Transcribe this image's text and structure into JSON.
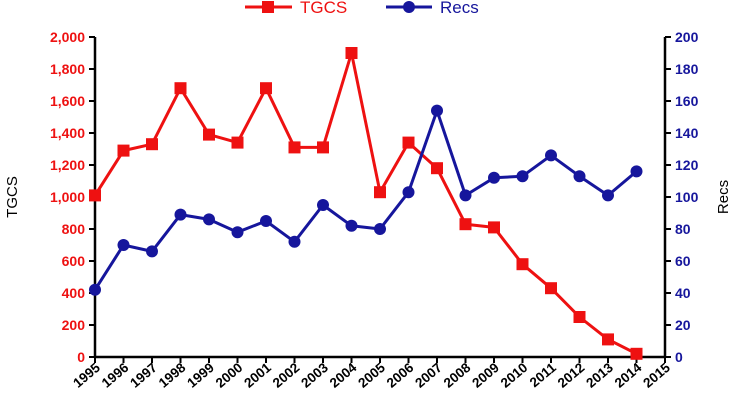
{
  "chart_data": {
    "type": "line",
    "title": "",
    "xlabel": "",
    "ylabel_left": "TGCS",
    "ylabel_right": "Recs",
    "x_categories": [
      "1995",
      "1996",
      "1997",
      "1998",
      "1999",
      "2000",
      "2001",
      "2002",
      "2003",
      "2004",
      "2005",
      "2006",
      "2007",
      "2008",
      "2009",
      "2010",
      "2011",
      "2012",
      "2013",
      "2014",
      "2015"
    ],
    "y_left": {
      "lim": [
        0,
        2000
      ],
      "ticks": [
        0,
        200,
        400,
        600,
        800,
        1000,
        1200,
        1400,
        1600,
        1800,
        2000
      ],
      "tick_labels": [
        "0",
        "200",
        "400",
        "600",
        "800",
        "1,000",
        "1,200",
        "1,400",
        "1,600",
        "1,800",
        "2,000"
      ],
      "color": "#ee1111"
    },
    "y_right": {
      "lim": [
        0,
        200
      ],
      "ticks": [
        0,
        20,
        40,
        60,
        80,
        100,
        120,
        140,
        160,
        180,
        200
      ],
      "tick_labels": [
        "0",
        "20",
        "40",
        "60",
        "80",
        "100",
        "120",
        "140",
        "160",
        "180",
        "200"
      ],
      "color": "#16169c"
    },
    "grid": false,
    "legend_position": "top",
    "series": [
      {
        "name": "TGCS",
        "axis": "left",
        "marker": "square",
        "color": "#ee1111",
        "x": [
          "1995",
          "1996",
          "1997",
          "1998",
          "1999",
          "2000",
          "2001",
          "2002",
          "2003",
          "2004",
          "2005",
          "2006",
          "2007",
          "2008",
          "2009",
          "2010",
          "2011",
          "2012",
          "2013",
          "2014"
        ],
        "values": [
          1010,
          1290,
          1330,
          1680,
          1390,
          1340,
          1680,
          1310,
          1310,
          1900,
          1030,
          1340,
          1180,
          830,
          810,
          580,
          430,
          250,
          110,
          20
        ]
      },
      {
        "name": "Recs",
        "axis": "right",
        "marker": "circle",
        "color": "#16169c",
        "x": [
          "1995",
          "1996",
          "1997",
          "1998",
          "1999",
          "2000",
          "2001",
          "2002",
          "2003",
          "2004",
          "2005",
          "2006",
          "2007",
          "2008",
          "2009",
          "2010",
          "2011",
          "2012",
          "2013",
          "2014"
        ],
        "values": [
          42,
          70,
          66,
          89,
          86,
          78,
          85,
          72,
          95,
          82,
          80,
          103,
          154,
          101,
          112,
          113,
          126,
          113,
          101,
          116
        ]
      }
    ]
  }
}
